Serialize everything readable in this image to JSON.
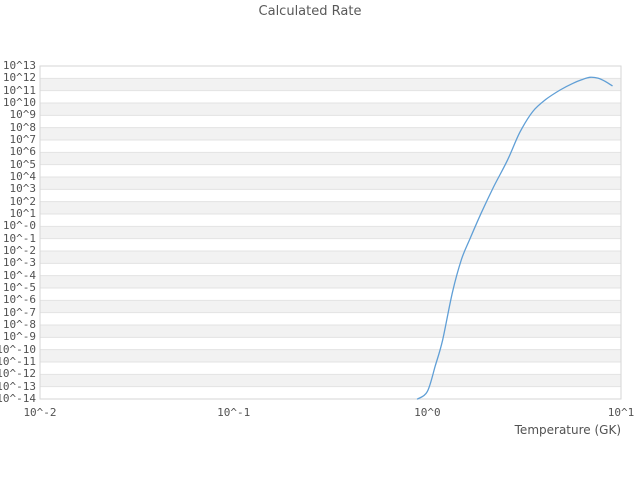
{
  "chart_data": {
    "type": "line",
    "title": "Calculated Rate",
    "xlabel": "Temperature (GK)",
    "ylabel": "",
    "x_scale": "log",
    "y_scale": "log",
    "xlim_log10": [
      -2,
      1
    ],
    "ylim_log10": [
      -14,
      13
    ],
    "x_tick_logs": [
      -2,
      -1,
      0,
      1
    ],
    "x_tick_labels": [
      "10^-2",
      "10^-1",
      "10^0",
      "10^1"
    ],
    "y_tick_logs": [
      13,
      12,
      11,
      10,
      9,
      8,
      7,
      6,
      5,
      4,
      3,
      2,
      1,
      0,
      -1,
      -2,
      -3,
      -4,
      -5,
      -6,
      -7,
      -8,
      -9,
      -10,
      -11,
      -12,
      -13,
      -14
    ],
    "y_tick_labels": [
      "10^13",
      "10^12",
      "10^11",
      "10^10",
      "10^9",
      "10^8",
      "10^7",
      "10^6",
      "10^5",
      "10^4",
      "10^3",
      "10^2",
      "10^1",
      "10^-0",
      "10^-1",
      "10^-2",
      "10^-3",
      "10^-4",
      "10^-5",
      "10^-6",
      "10^-7",
      "10^-8",
      "10^-9",
      "10^-10",
      "10^-11",
      "10^-12",
      "10^-13",
      "10^-14"
    ],
    "grid": "horizontal-bands",
    "legend": "none",
    "colors": {
      "band_even": "#ffffff",
      "band_odd": "#f2f2f2",
      "gridline": "#e3e3e3",
      "border": "#d6d6d6",
      "text": "#525252",
      "title_text": "#595959"
    },
    "series": [
      {
        "name": "calculated-rate",
        "color": "#609fd6",
        "points_T_log10rate": [
          [
            0.89,
            -14.0
          ],
          [
            1.0,
            -13.4
          ],
          [
            1.1,
            -11.3
          ],
          [
            1.2,
            -9.2
          ],
          [
            1.35,
            -5.3
          ],
          [
            1.5,
            -2.7
          ],
          [
            1.65,
            -1.1
          ],
          [
            1.9,
            1.1
          ],
          [
            2.2,
            3.2
          ],
          [
            2.6,
            5.4
          ],
          [
            3.0,
            7.6
          ],
          [
            3.5,
            9.3
          ],
          [
            4.1,
            10.3
          ],
          [
            4.85,
            11.05
          ],
          [
            5.65,
            11.6
          ],
          [
            6.3,
            11.9
          ],
          [
            6.9,
            12.08
          ],
          [
            7.6,
            12.02
          ],
          [
            8.3,
            11.75
          ],
          [
            9.0,
            11.4
          ]
        ]
      }
    ]
  }
}
